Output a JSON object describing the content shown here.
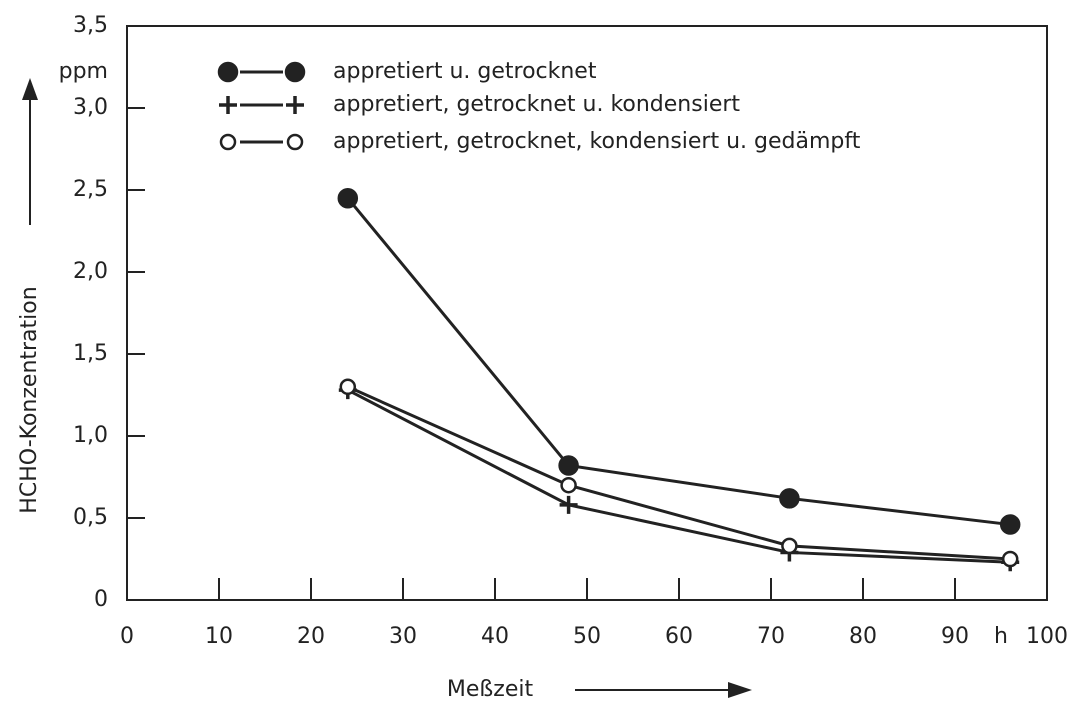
{
  "chart_data": {
    "type": "line",
    "y_label": "HCHO-Konzentration",
    "y_unit": "ppm",
    "x_label": "Meßzeit",
    "x_unit": "h",
    "x": [
      24,
      48,
      72,
      96
    ],
    "series": [
      {
        "name": "appretiert u. getrocknet",
        "color": "#222222",
        "marker": "filled",
        "values": [
          2.45,
          0.82,
          0.62,
          0.46
        ]
      },
      {
        "name": "appretiert, getrocknet u. kondensiert",
        "color": "#222222",
        "marker": "plus",
        "values": [
          1.28,
          0.58,
          0.29,
          0.23
        ]
      },
      {
        "name": "appretiert, getrocknet, kondensiert u. gedämpft",
        "color": "#222222",
        "marker": "open",
        "values": [
          1.3,
          0.7,
          0.33,
          0.25
        ]
      }
    ],
    "xlim": [
      0,
      100
    ],
    "xticks": [
      0,
      10,
      20,
      30,
      40,
      50,
      60,
      70,
      80,
      90,
      100
    ],
    "ylim": [
      0,
      3.5
    ],
    "yticks": [
      0,
      {
        "value": 0.5,
        "label": "0,5"
      },
      {
        "value": 1.0,
        "label": "1,0"
      },
      {
        "value": 1.5,
        "label": "1,5"
      },
      {
        "value": 2.0,
        "label": "2,0"
      },
      {
        "value": 2.5,
        "label": "2,5"
      },
      {
        "value": 3.0,
        "label": "3,0"
      },
      {
        "value": 3.5,
        "label": "3,5"
      }
    ],
    "grid": false
  }
}
